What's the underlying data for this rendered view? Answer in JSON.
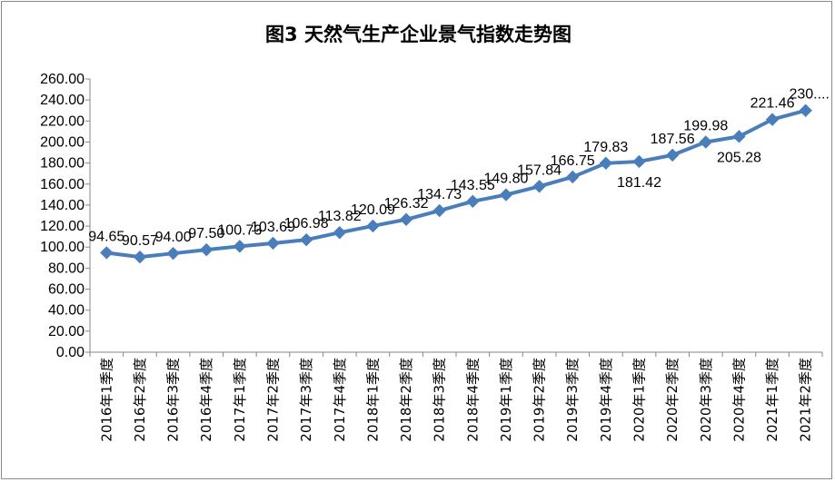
{
  "chart_data": {
    "type": "line",
    "title": "图3 天然气生产企业景气指数走势图",
    "xlabel": "",
    "ylabel": "",
    "ylim": [
      0,
      260
    ],
    "y_ticks": [
      "0.00",
      "20.00",
      "40.00",
      "60.00",
      "80.00",
      "100.00",
      "120.00",
      "140.00",
      "160.00",
      "180.00",
      "200.00",
      "220.00",
      "240.00",
      "260.00"
    ],
    "categories": [
      "2016年1季度",
      "2016年2季度",
      "2016年3季度",
      "2016年4季度",
      "2017年1季度",
      "2017年2季度",
      "2017年3季度",
      "2017年4季度",
      "2018年1季度",
      "2018年2季度",
      "2018年3季度",
      "2018年4季度",
      "2019年1季度",
      "2019年2季度",
      "2019年3季度",
      "2019年4季度",
      "2020年1季度",
      "2020年2季度",
      "2020年3季度",
      "2020年4季度",
      "2021年1季度",
      "2021年2季度"
    ],
    "values": [
      94.65,
      90.57,
      94.0,
      97.5,
      100.73,
      103.69,
      106.98,
      113.82,
      120.09,
      126.32,
      134.73,
      143.55,
      149.8,
      157.84,
      166.75,
      179.83,
      181.42,
      187.56,
      199.98,
      205.28,
      221.46,
      230.0
    ],
    "data_labels": [
      "94.65",
      "90.57",
      "94.00",
      "97.50",
      "100.73",
      "103.69",
      "106.98",
      "113.82",
      "120.09",
      "126.32",
      "134.73",
      "143.55",
      "149.80",
      "157.84",
      "166.75",
      "179.83",
      "181.42",
      "187.56",
      "199.98",
      "205.28",
      "221.46",
      "230...."
    ],
    "grid": false,
    "legend": "none",
    "series_color": "#4a7ebb"
  }
}
